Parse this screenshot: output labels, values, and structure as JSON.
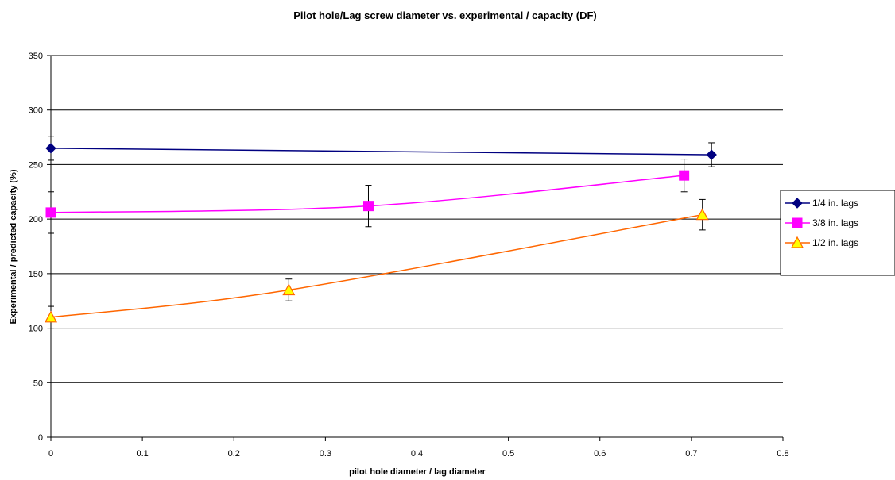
{
  "chart_data": {
    "type": "scatter",
    "title": "Pilot hole/Lag screw diameter vs. experimental / capacity (DF)",
    "xlabel": "pilot hole diameter / lag diameter",
    "ylabel": "Experimental / predicted capacity (%)",
    "xlim": [
      0,
      0.8
    ],
    "ylim": [
      0,
      350
    ],
    "x_ticks": [
      "0",
      "0.1",
      "0.2",
      "0.3",
      "0.4",
      "0.5",
      "0.6",
      "0.7",
      "0.8"
    ],
    "y_ticks": [
      "0",
      "50",
      "100",
      "150",
      "200",
      "250",
      "300",
      "350"
    ],
    "grid": "horizontal",
    "legend_position": "right",
    "series": [
      {
        "name": "1/4 in. lags",
        "color": "#000080",
        "marker": "diamond",
        "points": [
          {
            "x": 0,
            "y": 265,
            "err": 11
          },
          {
            "x": 0.722,
            "y": 259,
            "err": 11
          }
        ]
      },
      {
        "name": "3/8 in. lags",
        "color": "#FF00FF",
        "marker": "square",
        "points": [
          {
            "x": 0,
            "y": 206,
            "err": 19
          },
          {
            "x": 0.347,
            "y": 212,
            "err": 19
          },
          {
            "x": 0.692,
            "y": 240,
            "err": 15
          }
        ]
      },
      {
        "name": "1/2 in. lags",
        "color": "#FF6600",
        "marker_fill": "#FFFF00",
        "marker": "triangle",
        "points": [
          {
            "x": 0,
            "y": 110,
            "err": 10
          },
          {
            "x": 0.26,
            "y": 135,
            "err": 10
          },
          {
            "x": 0.712,
            "y": 204,
            "err": 14
          }
        ]
      }
    ]
  }
}
